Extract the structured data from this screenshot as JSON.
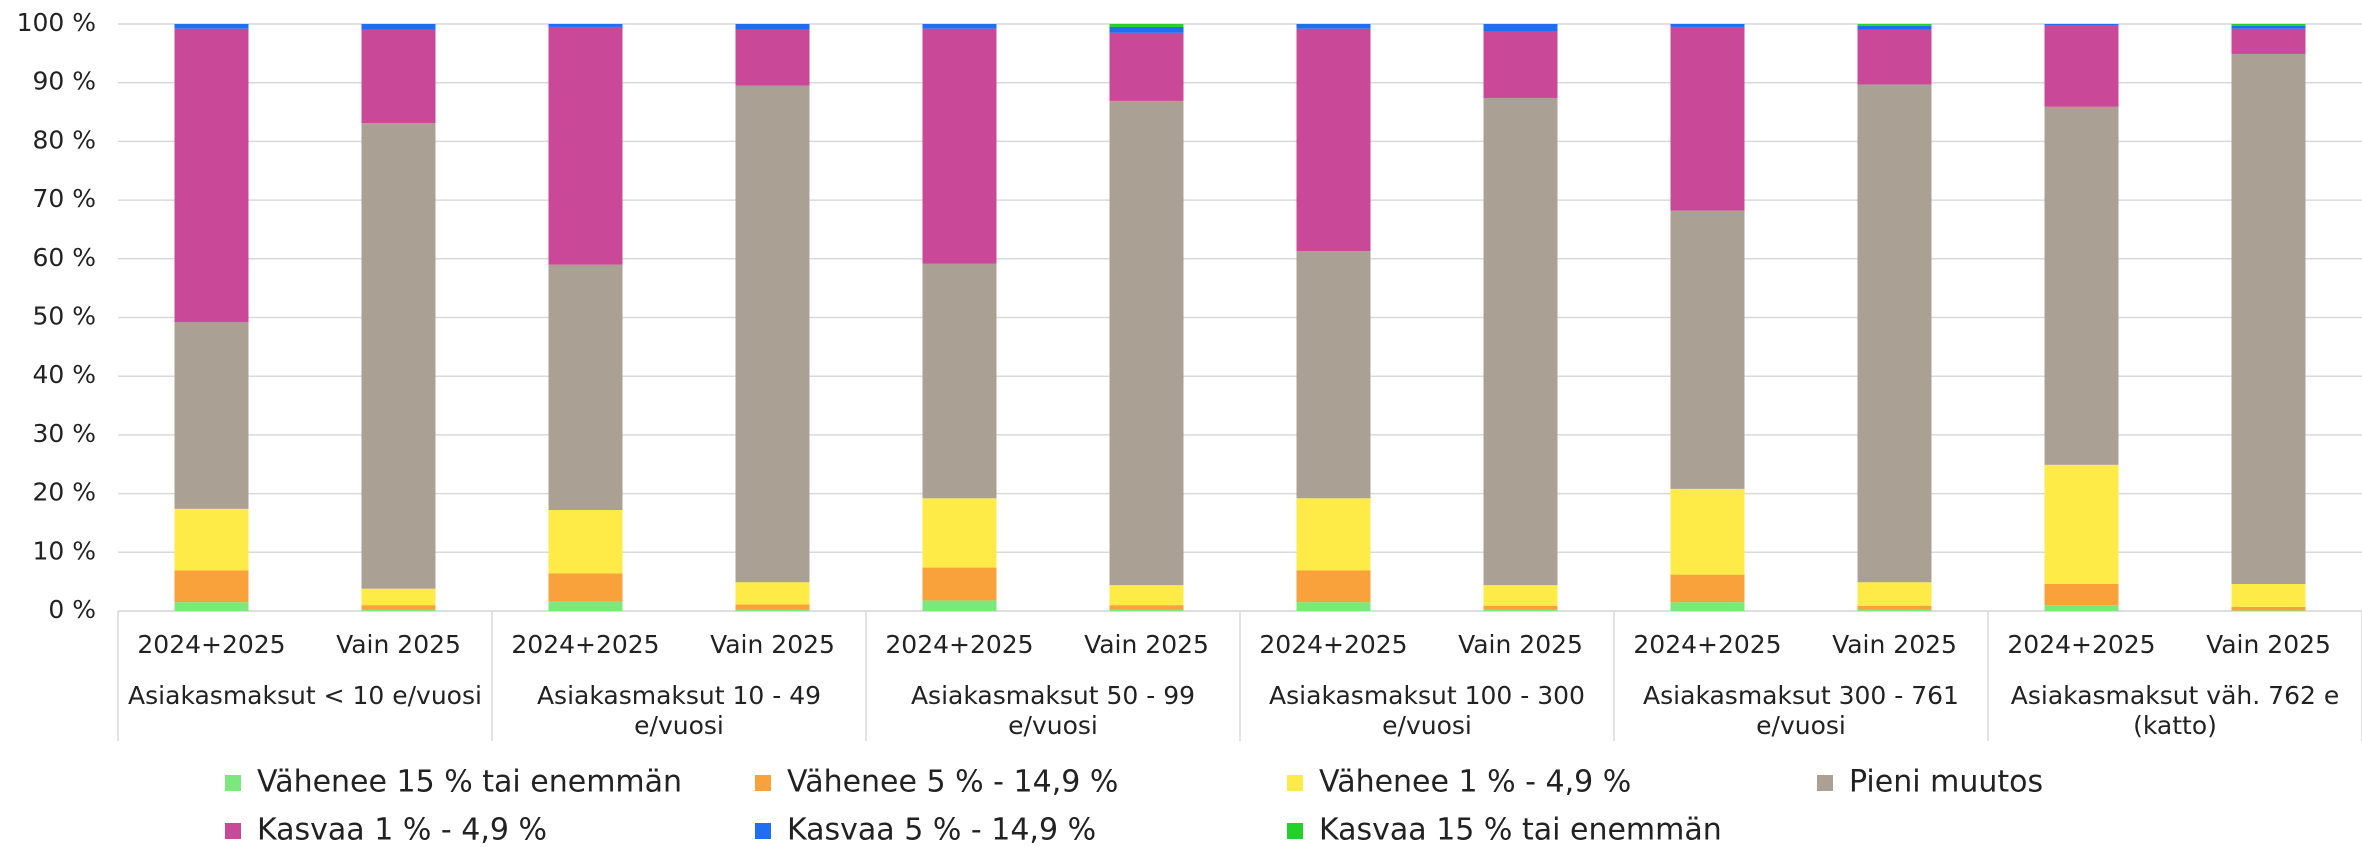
{
  "chart_data": {
    "type": "stacked_bar",
    "categories": [
      "2024+2025",
      "Vain 2025",
      "2024+2025",
      "Vain 2025",
      "2024+2025",
      "Vain 2025",
      "2024+2025",
      "Vain 2025",
      "2024+2025",
      "Vain 2025",
      "2024+2025",
      "Vain 2025"
    ],
    "groups": [
      "Asiakasmaksut < 10 e/vuosi",
      "Asiakasmaksut 10 - 49 e/vuosi",
      "Asiakasmaksut 50 - 99 e/vuosi",
      "Asiakasmaksut 100 - 300 e/vuosi",
      "Asiakasmaksut 300 - 761 e/vuosi",
      "Asiakasmaksut väh. 762 e (katto)"
    ],
    "series": [
      {
        "name": "Vähenee 15 % tai enemmän",
        "color": "#7ae87a",
        "values": [
          1.5,
          0.2,
          1.7,
          0.2,
          1.8,
          0.2,
          1.5,
          0.2,
          1.5,
          0.2,
          1.0,
          0.1
        ]
      },
      {
        "name": "Vähenee 5 % - 14,9 %",
        "color": "#f9a23c",
        "values": [
          5.4,
          0.8,
          4.7,
          0.9,
          5.6,
          0.8,
          5.4,
          0.7,
          4.7,
          0.7,
          3.6,
          0.6
        ]
      },
      {
        "name": "Vähenee 1 % - 4,9 %",
        "color": "#ffeb47",
        "values": [
          10.5,
          2.8,
          10.8,
          3.8,
          11.8,
          3.4,
          12.3,
          3.5,
          14.6,
          4.0,
          20.3,
          3.9
        ]
      },
      {
        "name": "Pieni muutos",
        "color": "#aaa194",
        "values": [
          31.8,
          79.3,
          41.8,
          84.6,
          40.0,
          82.5,
          42.1,
          83.0,
          47.4,
          84.8,
          61.0,
          90.3
        ]
      },
      {
        "name": "Kasvaa 1 % - 4,9 %",
        "color": "#c94898",
        "values": [
          50.0,
          15.9,
          40.5,
          9.5,
          40.0,
          11.6,
          37.9,
          11.3,
          31.3,
          9.3,
          13.8,
          4.3
        ]
      },
      {
        "name": "Kasvaa 5 % - 14,9 %",
        "color": "#1f6ef0",
        "values": [
          0.8,
          1.0,
          0.5,
          1.0,
          0.8,
          1.0,
          0.8,
          1.3,
          0.5,
          0.7,
          0.3,
          0.5
        ]
      },
      {
        "name": "Kasvaa 15 % tai enemmän",
        "color": "#22d22a",
        "values": [
          0,
          0,
          0,
          0,
          0,
          0.5,
          0,
          0,
          0,
          0.3,
          0,
          0.3
        ]
      }
    ],
    "ylim": [
      0,
      100
    ],
    "yticks": [
      {
        "value": 0,
        "label": "0 %"
      },
      {
        "value": 10,
        "label": "10 %"
      },
      {
        "value": 20,
        "label": "20 %"
      },
      {
        "value": 30,
        "label": "30 %"
      },
      {
        "value": 40,
        "label": "40 %"
      },
      {
        "value": 50,
        "label": "50 %"
      },
      {
        "value": 60,
        "label": "60 %"
      },
      {
        "value": 70,
        "label": "70 %"
      },
      {
        "value": 80,
        "label": "80 %"
      },
      {
        "value": 90,
        "label": "90 %"
      },
      {
        "value": 100,
        "label": "100 %"
      }
    ],
    "grid": true,
    "legend": "bottom"
  }
}
